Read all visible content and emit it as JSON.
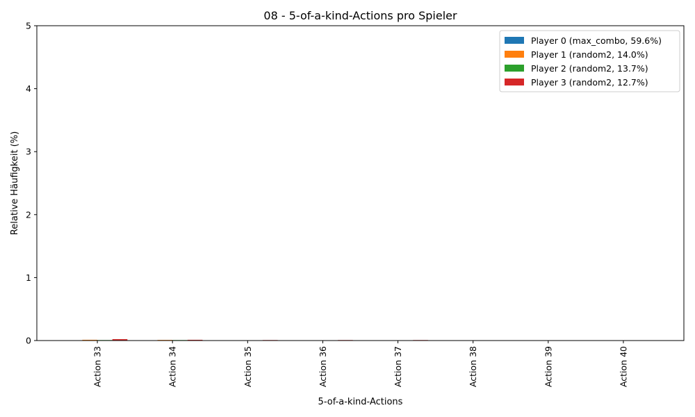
{
  "chart_data": {
    "type": "bar",
    "title": "08 - 5-of-a-kind-Actions pro Spieler",
    "xlabel": "5-of-a-kind-Actions",
    "ylabel": "Relative Häufigkeit (%)",
    "ylim": [
      0,
      5
    ],
    "yticks": [
      0,
      1,
      2,
      3,
      4,
      5
    ],
    "categories": [
      "Action 33",
      "Action 34",
      "Action 35",
      "Action 36",
      "Action 37",
      "Action 38",
      "Action 39",
      "Action 40"
    ],
    "series": [
      {
        "name": "Player 0 (max_combo, 59.6%)",
        "color": "#1f77b4",
        "values": [
          0,
          0,
          0,
          0,
          0,
          0,
          0,
          0
        ]
      },
      {
        "name": "Player 1 (random2, 14.0%)",
        "color": "#ff7f0e",
        "values": [
          0.012,
          0.01,
          0,
          0,
          0,
          0,
          0,
          0
        ]
      },
      {
        "name": "Player 2 (random2, 13.7%)",
        "color": "#2ca02c",
        "values": [
          0.008,
          0.008,
          0,
          0,
          0,
          0,
          0,
          0
        ]
      },
      {
        "name": "Player 3 (random2, 12.7%)",
        "color": "#d62728",
        "values": [
          0.022,
          0.012,
          0.008,
          0.008,
          0.008,
          0,
          0,
          0
        ]
      }
    ],
    "legend_position": "top-right",
    "grid": false
  }
}
